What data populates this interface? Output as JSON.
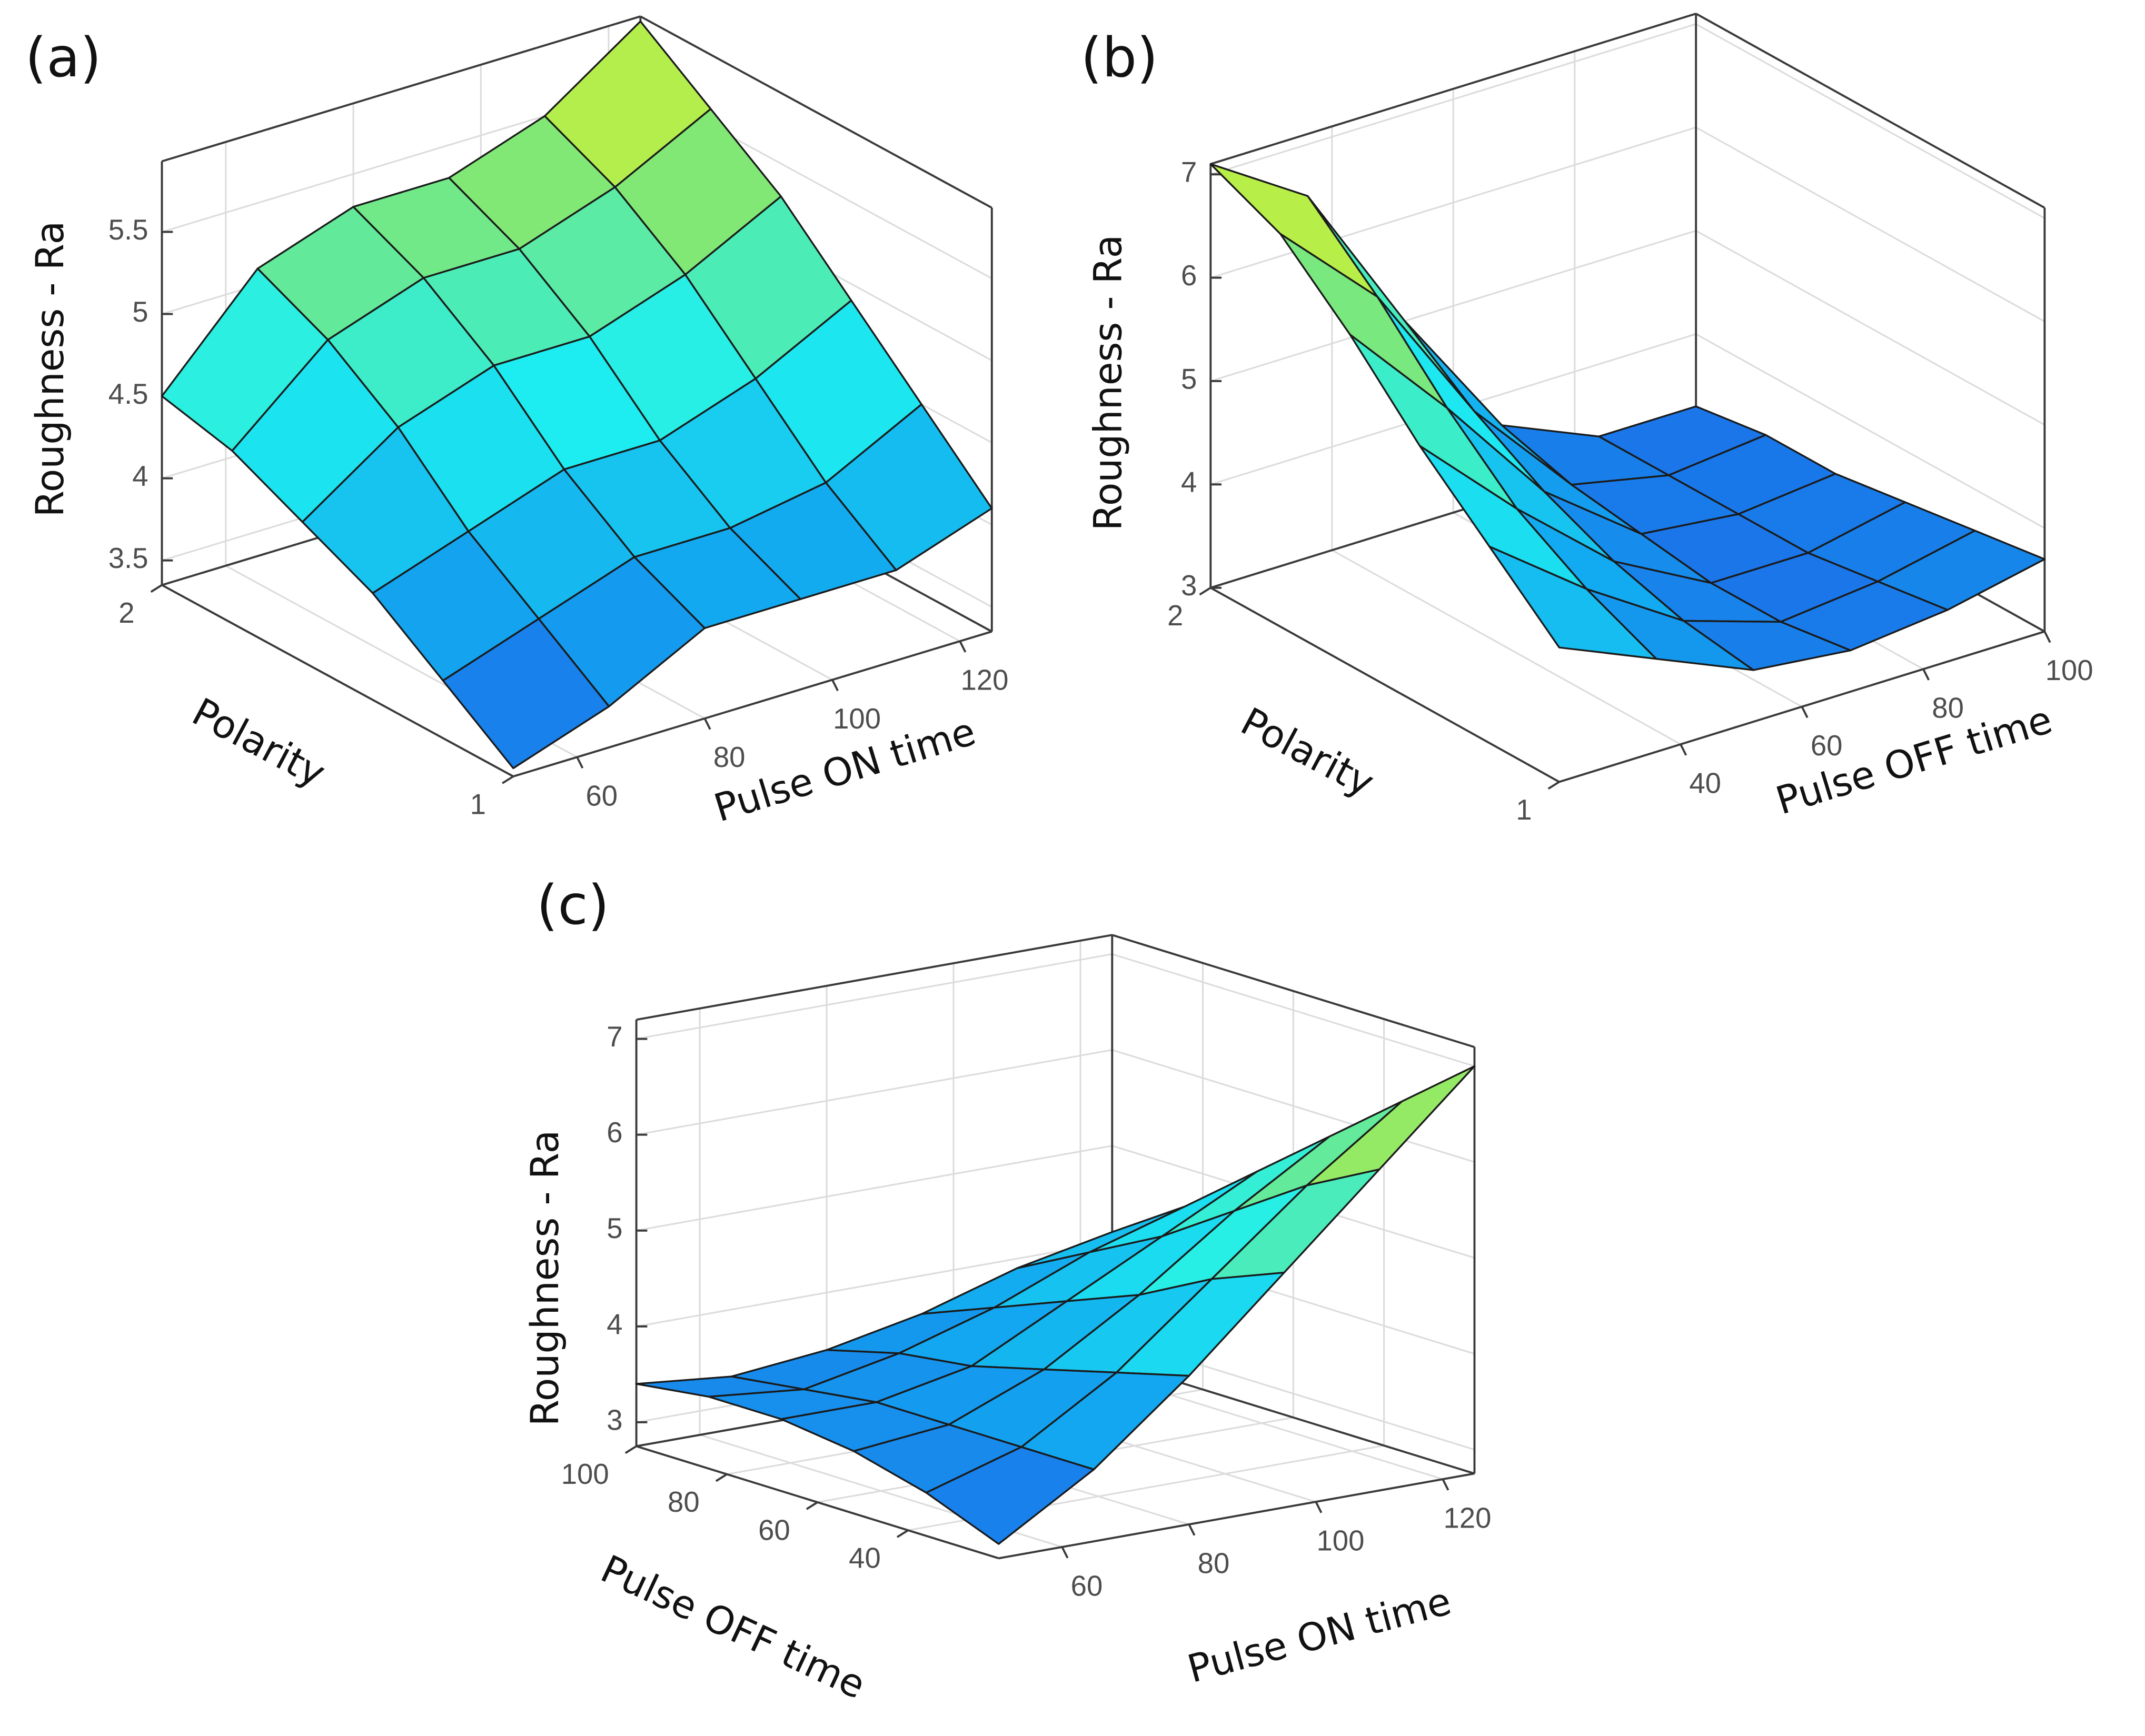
{
  "chart_data": [
    {
      "type": "surface",
      "panel_label": "(a)",
      "xlabel": "Pulse ON time",
      "ylabel": "Polarity",
      "zlabel": "Roughness - Ra",
      "x": [
        50,
        65,
        80,
        95,
        110,
        125
      ],
      "y": [
        1,
        1.2,
        1.4,
        1.6,
        1.8,
        2
      ],
      "z": [
        [
          3.4,
          3.6,
          3.9,
          3.9,
          3.9,
          4.1
        ],
        [
          3.7,
          3.9,
          4.1,
          4.1,
          4.2,
          4.5
        ],
        [
          4.0,
          4.2,
          4.4,
          4.4,
          4.6,
          4.9
        ],
        [
          4.2,
          4.6,
          4.8,
          4.8,
          5.0,
          5.3
        ],
        [
          4.4,
          4.9,
          5.1,
          5.1,
          5.3,
          5.6
        ],
        [
          4.5,
          5.1,
          5.3,
          5.3,
          5.5,
          5.9
        ]
      ],
      "xlim": [
        50,
        125
      ],
      "ylim": [
        1,
        2
      ],
      "zlim": [
        3.35,
        5.93
      ],
      "xticks": [
        60,
        80,
        100,
        120
      ],
      "yticks": [
        1,
        2
      ],
      "zticks": [
        3.5,
        4,
        4.5,
        5,
        5.5
      ],
      "grid": true,
      "colormap": [
        "#1d5fe6",
        "#12a8f0",
        "#1ef0f0",
        "#7ee878",
        "#f5f516"
      ]
    },
    {
      "type": "surface",
      "panel_label": "(b)",
      "xlabel": "Pulse OFF time",
      "ylabel": "Polarity",
      "zlabel": "Roughness - Ra",
      "x": [
        20,
        36,
        52,
        68,
        84,
        100
      ],
      "y": [
        1,
        1.2,
        1.4,
        1.6,
        1.8,
        2
      ],
      "z": [
        [
          4.3,
          3.9,
          3.5,
          3.4,
          3.5,
          3.7
        ],
        [
          4.9,
          4.2,
          3.6,
          3.3,
          3.4,
          3.6
        ],
        [
          5.5,
          4.6,
          3.8,
          3.3,
          3.3,
          3.5
        ],
        [
          6.2,
          5.2,
          4.1,
          3.4,
          3.3,
          3.4
        ],
        [
          6.8,
          5.9,
          4.5,
          3.5,
          3.3,
          3.4
        ],
        [
          7.1,
          6.5,
          5.0,
          3.7,
          3.3,
          3.3
        ]
      ],
      "xlim": [
        20,
        100
      ],
      "ylim": [
        1,
        2
      ],
      "zlim": [
        3,
        7.1
      ],
      "xticks": [
        40,
        60,
        80,
        100
      ],
      "yticks": [
        1,
        2
      ],
      "zticks": [
        3,
        4,
        5,
        6,
        7
      ],
      "grid": true,
      "colormap": [
        "#1d5fe6",
        "#12a8f0",
        "#1ef0f0",
        "#7ee878",
        "#f5f516"
      ]
    },
    {
      "type": "surface",
      "panel_label": "(c)",
      "xlabel": "Pulse ON time",
      "ylabel": "Pulse OFF time",
      "zlabel": "Roughness - Ra",
      "x": [
        50,
        65,
        80,
        95,
        110,
        125
      ],
      "y": [
        20,
        36,
        52,
        68,
        84,
        100
      ],
      "z": [
        [
          2.9,
          3.5,
          4.3,
          5.2,
          6.1,
          7.0
        ],
        [
          3.2,
          3.5,
          4.1,
          4.9,
          5.7,
          6.4
        ],
        [
          3.4,
          3.5,
          3.9,
          4.5,
          5.2,
          5.8
        ],
        [
          3.5,
          3.5,
          3.7,
          4.2,
          4.7,
          5.2
        ],
        [
          3.5,
          3.4,
          3.6,
          3.9,
          4.3,
          4.6
        ],
        [
          3.4,
          3.3,
          3.4,
          3.6,
          3.9,
          4.1
        ]
      ],
      "xlim": [
        50,
        125
      ],
      "ylim": [
        20,
        100
      ],
      "zlim": [
        2.75,
        7.2
      ],
      "xticks": [
        60,
        80,
        100,
        120
      ],
      "yticks": [
        40,
        60,
        80,
        100
      ],
      "zticks": [
        3,
        4,
        5,
        6,
        7
      ],
      "grid": true,
      "colormap": [
        "#1d5fe6",
        "#12a8f0",
        "#1ef0f0",
        "#7ee878",
        "#f5f516"
      ]
    }
  ]
}
